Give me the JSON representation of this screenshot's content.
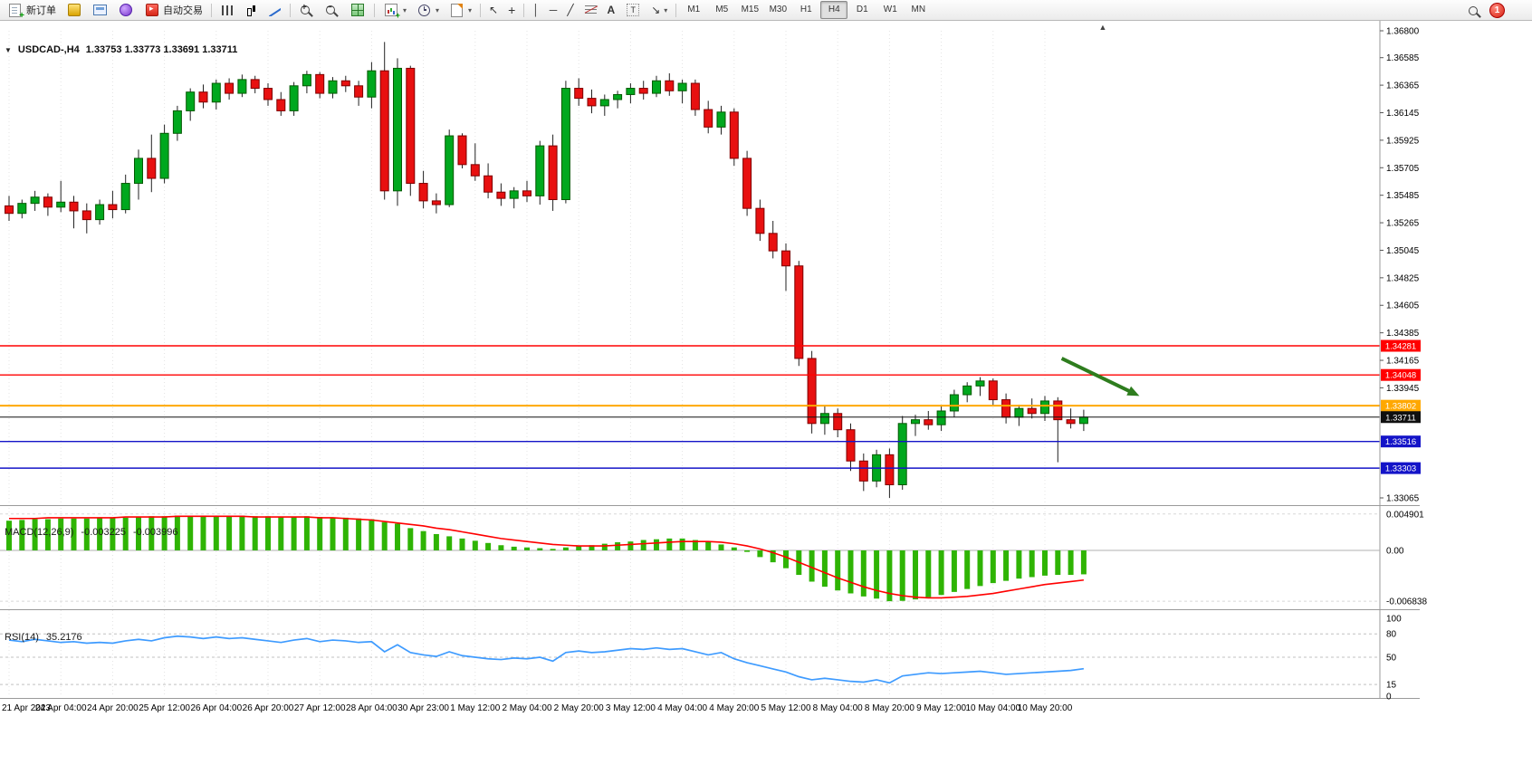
{
  "window": {
    "symbol": "USDCAD-,H4",
    "ohlc": "1.33753 1.33773 1.33691 1.33711",
    "dropdown_glyph": "▼",
    "shift_marker_glyph": "▲"
  },
  "toolbar": {
    "new_order_label": "新订单",
    "autotrading_label": "自动交易",
    "timeframes": [
      "M1",
      "M5",
      "M15",
      "M30",
      "H1",
      "H4",
      "D1",
      "W1",
      "MN"
    ],
    "active_timeframe": "H4",
    "notification_count": "1",
    "glyphs": {
      "cursor": "↖",
      "crosshair": "+",
      "vline": "│",
      "hline": "─",
      "trendline": "╱",
      "text": "A",
      "text_label": "T",
      "arrows": "↘",
      "caret": "▾"
    }
  },
  "chart_data": {
    "type": "candlestick",
    "symbol": "USDCAD",
    "timeframe": "H4",
    "colors": {
      "bull": "#00A81E",
      "bear": "#E81010",
      "wick": "#222222",
      "macd_hist": "#2FB404",
      "macd_signal": "#FF0000",
      "rsi": "#3E9BFF",
      "grid": "#e4e4e4",
      "separator": "#9a9a9a"
    },
    "price_axis": {
      "max": 1.368,
      "min": 1.33065,
      "ticks": [
        "1.36800",
        "1.36585",
        "1.36365",
        "1.36145",
        "1.35925",
        "1.35705",
        "1.35485",
        "1.35265",
        "1.35045",
        "1.34825",
        "1.34605",
        "1.34385",
        "1.34165",
        "1.33945",
        "1.33065"
      ]
    },
    "candles": [
      [
        1.354,
        1.3548,
        1.3528,
        1.3534
      ],
      [
        1.3534,
        1.3545,
        1.353,
        1.3542
      ],
      [
        1.3542,
        1.3552,
        1.3536,
        1.3547
      ],
      [
        1.3547,
        1.355,
        1.3532,
        1.3539
      ],
      [
        1.3539,
        1.356,
        1.3535,
        1.3543
      ],
      [
        1.3543,
        1.3548,
        1.3522,
        1.3536
      ],
      [
        1.3536,
        1.3542,
        1.3518,
        1.3529
      ],
      [
        1.3529,
        1.3545,
        1.3525,
        1.3541
      ],
      [
        1.3541,
        1.3552,
        1.353,
        1.3537
      ],
      [
        1.3537,
        1.3565,
        1.3534,
        1.3558
      ],
      [
        1.3558,
        1.3585,
        1.3545,
        1.3578
      ],
      [
        1.3578,
        1.3597,
        1.3551,
        1.3562
      ],
      [
        1.3562,
        1.3605,
        1.3558,
        1.3598
      ],
      [
        1.3598,
        1.362,
        1.3592,
        1.3616
      ],
      [
        1.3616,
        1.3634,
        1.3608,
        1.3631
      ],
      [
        1.3631,
        1.3637,
        1.3618,
        1.3623
      ],
      [
        1.3623,
        1.3641,
        1.3617,
        1.3638
      ],
      [
        1.3638,
        1.3642,
        1.3625,
        1.363
      ],
      [
        1.363,
        1.3645,
        1.3627,
        1.3641
      ],
      [
        1.3641,
        1.3644,
        1.363,
        1.3634
      ],
      [
        1.3634,
        1.3638,
        1.362,
        1.3625
      ],
      [
        1.3625,
        1.3631,
        1.3612,
        1.3616
      ],
      [
        1.3616,
        1.3639,
        1.3612,
        1.3636
      ],
      [
        1.3636,
        1.3648,
        1.363,
        1.3645
      ],
      [
        1.3645,
        1.3647,
        1.3626,
        1.363
      ],
      [
        1.363,
        1.3643,
        1.3626,
        1.364
      ],
      [
        1.364,
        1.3644,
        1.3631,
        1.3636
      ],
      [
        1.3636,
        1.364,
        1.362,
        1.3627
      ],
      [
        1.3627,
        1.3655,
        1.3618,
        1.3648
      ],
      [
        1.3648,
        1.3671,
        1.3545,
        1.3552
      ],
      [
        1.3552,
        1.3658,
        1.354,
        1.365
      ],
      [
        1.365,
        1.3652,
        1.3548,
        1.3558
      ],
      [
        1.3558,
        1.3568,
        1.3538,
        1.3544
      ],
      [
        1.3544,
        1.355,
        1.3534,
        1.3541
      ],
      [
        1.3541,
        1.3601,
        1.3539,
        1.3596
      ],
      [
        1.3596,
        1.3598,
        1.357,
        1.3573
      ],
      [
        1.3573,
        1.359,
        1.356,
        1.3564
      ],
      [
        1.3564,
        1.3574,
        1.3546,
        1.3551
      ],
      [
        1.3551,
        1.3558,
        1.354,
        1.3546
      ],
      [
        1.3546,
        1.3555,
        1.3538,
        1.3552
      ],
      [
        1.3552,
        1.356,
        1.3543,
        1.3548
      ],
      [
        1.3548,
        1.3592,
        1.3541,
        1.3588
      ],
      [
        1.3588,
        1.3597,
        1.3536,
        1.3545
      ],
      [
        1.3545,
        1.364,
        1.3542,
        1.3634
      ],
      [
        1.3634,
        1.3642,
        1.362,
        1.3626
      ],
      [
        1.3626,
        1.3633,
        1.3614,
        1.362
      ],
      [
        1.362,
        1.3629,
        1.3612,
        1.3625
      ],
      [
        1.3625,
        1.3632,
        1.3618,
        1.3629
      ],
      [
        1.3629,
        1.3638,
        1.3622,
        1.3634
      ],
      [
        1.3634,
        1.364,
        1.3625,
        1.363
      ],
      [
        1.363,
        1.3644,
        1.3627,
        1.364
      ],
      [
        1.364,
        1.3646,
        1.3628,
        1.3632
      ],
      [
        1.3632,
        1.3641,
        1.3622,
        1.3638
      ],
      [
        1.3638,
        1.3641,
        1.3612,
        1.3617
      ],
      [
        1.3617,
        1.3624,
        1.3598,
        1.3603
      ],
      [
        1.3603,
        1.362,
        1.3597,
        1.3615
      ],
      [
        1.3615,
        1.3618,
        1.3572,
        1.3578
      ],
      [
        1.3578,
        1.3584,
        1.3532,
        1.3538
      ],
      [
        1.3538,
        1.3545,
        1.3512,
        1.3518
      ],
      [
        1.3518,
        1.3528,
        1.3498,
        1.3504
      ],
      [
        1.3504,
        1.351,
        1.3472,
        1.3492
      ],
      [
        1.3492,
        1.3496,
        1.3412,
        1.3418
      ],
      [
        1.3418,
        1.3424,
        1.3358,
        1.3366
      ],
      [
        1.3366,
        1.338,
        1.3357,
        1.3374
      ],
      [
        1.3374,
        1.3378,
        1.3355,
        1.3361
      ],
      [
        1.3361,
        1.3366,
        1.3328,
        1.3336
      ],
      [
        1.3336,
        1.3342,
        1.3312,
        1.332
      ],
      [
        1.332,
        1.3345,
        1.3315,
        1.3341
      ],
      [
        1.3341,
        1.3346,
        1.33065,
        1.3317
      ],
      [
        1.3317,
        1.3372,
        1.3313,
        1.3366
      ],
      [
        1.3366,
        1.3373,
        1.3356,
        1.3369
      ],
      [
        1.3369,
        1.3376,
        1.3361,
        1.3365
      ],
      [
        1.3365,
        1.338,
        1.336,
        1.3376
      ],
      [
        1.3376,
        1.3393,
        1.3371,
        1.3389
      ],
      [
        1.3389,
        1.3399,
        1.3383,
        1.3396
      ],
      [
        1.3396,
        1.3403,
        1.3388,
        1.34
      ],
      [
        1.34,
        1.3402,
        1.338,
        1.3385
      ],
      [
        1.3385,
        1.339,
        1.3366,
        1.3371
      ],
      [
        1.3371,
        1.3381,
        1.3364,
        1.3378
      ],
      [
        1.3378,
        1.3386,
        1.337,
        1.3374
      ],
      [
        1.3374,
        1.3388,
        1.3368,
        1.3384
      ],
      [
        1.3384,
        1.3387,
        1.3335,
        1.3369
      ],
      [
        1.3369,
        1.3378,
        1.3362,
        1.3366
      ],
      [
        1.3366,
        1.3377,
        1.336,
        1.33711
      ]
    ],
    "levels": [
      {
        "label": "1.34281",
        "price": 1.34281,
        "color": "#FF0000",
        "width": 1.4
      },
      {
        "label": "1.34048",
        "price": 1.34048,
        "color": "#FF0000",
        "width": 1.4
      },
      {
        "label": "1.33802",
        "price": 1.33802,
        "color": "#FFA800",
        "width": 2
      },
      {
        "label": "1.33711",
        "price": 1.33711,
        "color": "#101010",
        "width": 1
      },
      {
        "label": "1.33516",
        "price": 1.33516,
        "color": "#1414C8",
        "width": 1.4
      },
      {
        "label": "1.33303",
        "price": 1.33303,
        "color": "#1414C8",
        "width": 1.4
      }
    ],
    "arrow": {
      "from_bar": 81.3,
      "from_price": 1.3418,
      "to_bar": 87.3,
      "to_price": 1.3388,
      "color": "#2E7D1E"
    },
    "macd": {
      "name": "MACD(12,26,9)",
      "value": "-0.003225",
      "signal_value": "-0.003996",
      "axis_labels": {
        "max": "0.004901",
        "zero": "0.00",
        "min": "-0.006838"
      },
      "axis": {
        "max": 0.004901,
        "min": -0.006838
      },
      "histogram": [
        0.004,
        0.0041,
        0.0042,
        0.0042,
        0.0043,
        0.0043,
        0.0043,
        0.0044,
        0.0044,
        0.0044,
        0.0045,
        0.0046,
        0.0046,
        0.0047,
        0.0047,
        0.0047,
        0.0046,
        0.0046,
        0.0047,
        0.0046,
        0.0046,
        0.0045,
        0.0045,
        0.0046,
        0.0045,
        0.0044,
        0.0044,
        0.0043,
        0.0042,
        0.0038,
        0.0036,
        0.003,
        0.0026,
        0.0022,
        0.0019,
        0.0016,
        0.0013,
        0.001,
        0.0007,
        0.0005,
        0.0004,
        0.0003,
        0.0002,
        0.0004,
        0.0006,
        0.0007,
        0.0009,
        0.0011,
        0.0012,
        0.0014,
        0.0015,
        0.0016,
        0.0016,
        0.0014,
        0.0011,
        0.0008,
        0.0004,
        -0.0002,
        -0.0009,
        -0.0016,
        -0.0024,
        -0.0033,
        -0.0042,
        -0.0049,
        -0.0054,
        -0.0058,
        -0.0062,
        -0.0065,
        -0.00684,
        -0.0068,
        -0.0066,
        -0.0063,
        -0.006,
        -0.0056,
        -0.0052,
        -0.0048,
        -0.0044,
        -0.0041,
        -0.0038,
        -0.0036,
        -0.0034,
        -0.0033,
        -0.0033,
        -0.003225
      ],
      "signal": [
        0.0043,
        0.0043,
        0.0043,
        0.0044,
        0.0044,
        0.0044,
        0.0044,
        0.0044,
        0.0044,
        0.0045,
        0.0045,
        0.0045,
        0.0045,
        0.0046,
        0.0046,
        0.0046,
        0.0046,
        0.0046,
        0.0046,
        0.0045,
        0.0045,
        0.0045,
        0.0045,
        0.0045,
        0.0044,
        0.0044,
        0.0043,
        0.0042,
        0.0041,
        0.0039,
        0.0037,
        0.0035,
        0.0033,
        0.003,
        0.0028,
        0.0025,
        0.0022,
        0.0019,
        0.0016,
        0.0014,
        0.0012,
        0.001,
        0.0008,
        0.0007,
        0.0006,
        0.0006,
        0.0006,
        0.0007,
        0.0008,
        0.0009,
        0.001,
        0.0011,
        0.0012,
        0.0012,
        0.0012,
        0.0011,
        0.0009,
        0.0006,
        0.0002,
        -0.0003,
        -0.0009,
        -0.0016,
        -0.0023,
        -0.003,
        -0.0037,
        -0.0043,
        -0.0049,
        -0.0054,
        -0.0058,
        -0.0061,
        -0.0063,
        -0.0064,
        -0.0064,
        -0.0063,
        -0.0062,
        -0.006,
        -0.0058,
        -0.0055,
        -0.0052,
        -0.0049,
        -0.0046,
        -0.0044,
        -0.0042,
        -0.003996
      ]
    },
    "rsi": {
      "name": "RSI(14)",
      "value": "35.2176",
      "axis_labels": [
        "100",
        "80",
        "50",
        "15",
        "0"
      ],
      "dashed_levels": [
        80,
        50,
        15
      ],
      "values": [
        72,
        70,
        73,
        71,
        69,
        70,
        68,
        69,
        68,
        71,
        73,
        71,
        75,
        77,
        76,
        74,
        76,
        74,
        75,
        73,
        71,
        69,
        72,
        74,
        70,
        72,
        71,
        69,
        70,
        57,
        66,
        56,
        53,
        51,
        57,
        52,
        50,
        48,
        47,
        49,
        48,
        50,
        45,
        56,
        58,
        56,
        57,
        59,
        61,
        60,
        62,
        60,
        61,
        57,
        53,
        56,
        48,
        43,
        39,
        35,
        31,
        25,
        21,
        23,
        21,
        19,
        18,
        21,
        17,
        26,
        28,
        30,
        29,
        30,
        31,
        32,
        30,
        28,
        29,
        30,
        31,
        32,
        33,
        35.2176
      ]
    },
    "time_axis": {
      "labels": [
        "21 Apr 2023",
        "24 Apr 04:00",
        "24 Apr 20:00",
        "25 Apr 12:00",
        "26 Apr 04:00",
        "26 Apr 20:00",
        "27 Apr 12:00",
        "28 Apr 04:00",
        "30 Apr 23:00",
        "1 May 12:00",
        "2 May 04:00",
        "2 May 20:00",
        "3 May 12:00",
        "4 May 04:00",
        "4 May 20:00",
        "5 May 12:00",
        "8 May 04:00",
        "8 May 20:00",
        "9 May 12:00",
        "10 May 04:00",
        "10 May 20:00"
      ]
    }
  }
}
